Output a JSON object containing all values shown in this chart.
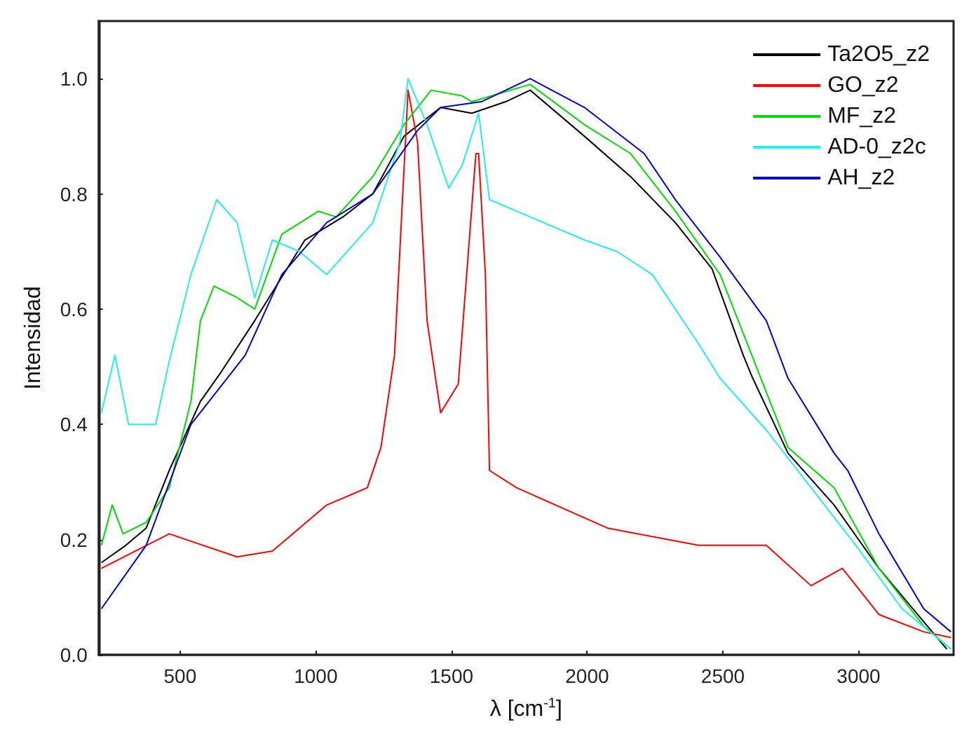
{
  "chart_data": {
    "type": "line",
    "xlabel": "λ [cm$^{-1}$]",
    "ylabel": "Intensidad",
    "xlim": [
      200,
      3350
    ],
    "ylim": [
      0,
      1.1
    ],
    "xticks": [
      500,
      1000,
      1500,
      2000,
      2500,
      3000
    ],
    "yticks": [
      {
        "value": 0,
        "label": "0.0"
      },
      {
        "value": 0.2,
        "label": "0.2"
      },
      {
        "value": 0.4,
        "label": "0.4"
      },
      {
        "value": 0.6,
        "label": "0.6"
      },
      {
        "value": 0.8,
        "label": "0.8"
      },
      {
        "value": 1,
        "label": "1.0"
      }
    ],
    "grid": false,
    "legend": "top right",
    "marker": "none",
    "line_style": "solid",
    "series": [
      {
        "name": "Ta2O5_z2",
        "color": "#000000",
        "x": [
          210,
          240,
          300,
          375,
          460,
          575,
          650,
          775,
          960,
          1100,
          1210,
          1325,
          1460,
          1575,
          1700,
          1790,
          1990,
          2160,
          2325,
          2460,
          2575,
          2610,
          2740,
          2910,
          3075,
          3325
        ],
        "values": [
          0.16,
          0.17,
          0.19,
          0.22,
          0.32,
          0.44,
          0.49,
          0.58,
          0.72,
          0.76,
          0.8,
          0.9,
          0.95,
          0.94,
          0.96,
          0.98,
          0.9,
          0.83,
          0.75,
          0.67,
          0.52,
          0.48,
          0.35,
          0.26,
          0.15,
          0.01
        ]
      },
      {
        "name": "GO_z2",
        "color": "#ff0000",
        "x": [
          210,
          460,
          710,
          840,
          1040,
          1190,
          1240,
          1290,
          1340,
          1375,
          1410,
          1460,
          1525,
          1590,
          1600,
          1625,
          1640,
          1740,
          2075,
          2410,
          2660,
          2825,
          2940,
          3075,
          3240,
          3340
        ],
        "values": [
          0.15,
          0.21,
          0.17,
          0.18,
          0.26,
          0.29,
          0.36,
          0.52,
          0.98,
          0.89,
          0.58,
          0.42,
          0.47,
          0.87,
          0.87,
          0.66,
          0.32,
          0.29,
          0.22,
          0.19,
          0.19,
          0.12,
          0.15,
          0.07,
          0.04,
          0.03
        ]
      },
      {
        "name": "MF_z2",
        "color": "#00dd00",
        "x": [
          210,
          250,
          290,
          375,
          460,
          540,
          575,
          625,
          710,
          775,
          875,
          1010,
          1075,
          1210,
          1325,
          1425,
          1540,
          1575,
          1790,
          1990,
          2160,
          2325,
          2490,
          2640,
          2740,
          2910,
          3075,
          3240,
          3340
        ],
        "values": [
          0.19,
          0.26,
          0.21,
          0.23,
          0.29,
          0.44,
          0.58,
          0.64,
          0.62,
          0.6,
          0.73,
          0.77,
          0.76,
          0.83,
          0.92,
          0.98,
          0.97,
          0.96,
          0.99,
          0.92,
          0.87,
          0.77,
          0.66,
          0.48,
          0.36,
          0.29,
          0.15,
          0.05,
          0.01
        ]
      },
      {
        "name": "AD-0_z2c",
        "color": "#22eef0",
        "x": [
          210,
          260,
          310,
          410,
          460,
          540,
          635,
          710,
          775,
          840,
          940,
          1040,
          1210,
          1310,
          1340,
          1410,
          1490,
          1540,
          1600,
          1640,
          1740,
          1990,
          2110,
          2240,
          2410,
          2490,
          2660,
          2825,
          2990,
          3160,
          3340
        ],
        "values": [
          0.42,
          0.52,
          0.4,
          0.4,
          0.51,
          0.66,
          0.79,
          0.75,
          0.62,
          0.72,
          0.7,
          0.66,
          0.75,
          0.89,
          1.0,
          0.92,
          0.81,
          0.85,
          0.94,
          0.79,
          0.77,
          0.72,
          0.7,
          0.66,
          0.54,
          0.48,
          0.39,
          0.29,
          0.19,
          0.08,
          0.01
        ]
      },
      {
        "name": "AH_z2",
        "color": "#0000cc",
        "x": [
          210,
          375,
          540,
          740,
          875,
          1040,
          1210,
          1375,
          1460,
          1610,
          1790,
          1990,
          2210,
          2325,
          2490,
          2660,
          2740,
          2910,
          2960,
          3075,
          3240,
          3340
        ],
        "values": [
          0.08,
          0.19,
          0.4,
          0.52,
          0.66,
          0.75,
          0.8,
          0.91,
          0.95,
          0.96,
          1.0,
          0.95,
          0.87,
          0.79,
          0.69,
          0.58,
          0.48,
          0.35,
          0.32,
          0.21,
          0.08,
          0.04
        ]
      }
    ]
  }
}
